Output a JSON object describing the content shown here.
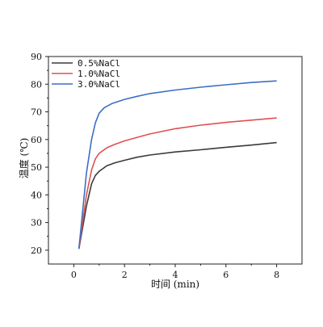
{
  "chart_data": {
    "type": "line",
    "title": "",
    "xlabel": "时间 (min)",
    "ylabel": "温度 (℃)",
    "xlim": [
      -1,
      9
    ],
    "ylim": [
      15,
      90
    ],
    "xticks": [
      0,
      2,
      4,
      6,
      8
    ],
    "yticks": [
      20,
      30,
      40,
      50,
      60,
      70,
      80,
      90
    ],
    "grid": false,
    "legend_position": "top-left",
    "series": [
      {
        "name": "0.5%NaCl",
        "color": "#3a3a3a",
        "x": [
          0.2,
          0.5,
          0.7,
          0.85,
          1.0,
          1.3,
          1.6,
          2.0,
          2.5,
          3.0,
          4.0,
          5.0,
          6.0,
          7.0,
          8.0
        ],
        "y": [
          20.5,
          36,
          44,
          47,
          48.5,
          50.5,
          51.5,
          52.5,
          53.6,
          54.4,
          55.5,
          56.3,
          57.2,
          58.0,
          58.9
        ]
      },
      {
        "name": "1.0%NaCl",
        "color": "#e05050",
        "x": [
          0.2,
          0.5,
          0.7,
          0.85,
          1.0,
          1.3,
          1.6,
          2.0,
          2.5,
          3.0,
          4.0,
          5.0,
          6.0,
          7.0,
          8.0
        ],
        "y": [
          20.5,
          40,
          49,
          53,
          55,
          57,
          58.2,
          59.5,
          60.8,
          62.0,
          63.9,
          65.2,
          66.2,
          67.0,
          67.8
        ]
      },
      {
        "name": "3.0%NaCl",
        "color": "#3b6fc4",
        "x": [
          0.2,
          0.5,
          0.7,
          0.85,
          1.0,
          1.2,
          1.5,
          2.0,
          2.5,
          3.0,
          4.0,
          5.0,
          6.0,
          7.0,
          8.0
        ],
        "y": [
          20.5,
          48,
          60,
          66,
          69.5,
          71.5,
          73.0,
          74.5,
          75.6,
          76.6,
          77.9,
          78.9,
          79.8,
          80.6,
          81.2
        ]
      }
    ]
  }
}
